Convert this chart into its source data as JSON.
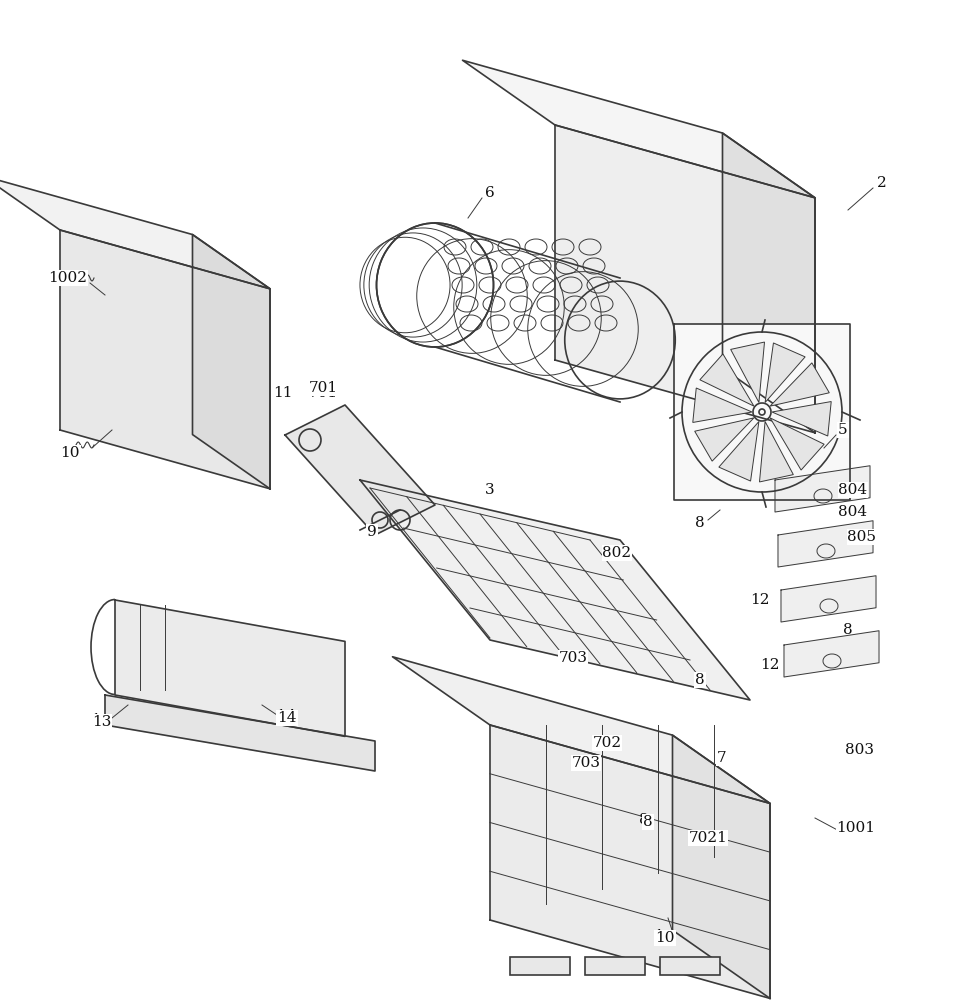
{
  "bg_color": "#ffffff",
  "line_color": "#3a3a3a",
  "line_width": 1.2,
  "thin_lw": 0.7,
  "figsize": [
    9.71,
    10.0
  ],
  "dpi": 100
}
